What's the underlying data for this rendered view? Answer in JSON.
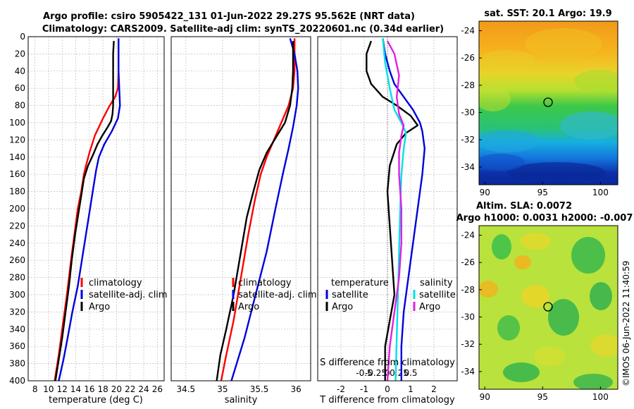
{
  "title_line1": "Argo profile: csiro 5905422_131 01-Jun-2022 29.27S 95.562E (NRT data)",
  "title_line2": "Climatology: CARS2009. Satellite-adj clim: synTS_20220601.nc (0.34d earlier)",
  "watermark": "©IMOS 06-Jun-2022 11:40:59",
  "colors": {
    "red": "#ff0000",
    "blue": "#0000dd",
    "black": "#000000",
    "cyan": "#00e0e8",
    "magenta": "#e020e0"
  },
  "chart_data": [
    {
      "type": "line",
      "name": "temperature",
      "xlabel": "temperature (deg C)",
      "ylabel": "",
      "xlim": [
        7,
        27
      ],
      "ylim": [
        400,
        0
      ],
      "xticks": [
        8,
        10,
        12,
        14,
        16,
        18,
        20,
        22,
        24,
        26
      ],
      "yticks": [
        0,
        20,
        40,
        60,
        80,
        100,
        120,
        140,
        160,
        180,
        200,
        220,
        240,
        260,
        280,
        300,
        320,
        340,
        360,
        380,
        400
      ],
      "legend": [
        "climatology",
        "satellite-adj. clim",
        "Argo"
      ],
      "series": [
        {
          "name": "climatology",
          "color": "red",
          "points": [
            [
              20.3,
              2
            ],
            [
              20.3,
              20
            ],
            [
              20.3,
              40
            ],
            [
              20.2,
              60
            ],
            [
              19.8,
              70
            ],
            [
              19.0,
              80
            ],
            [
              18.0,
              95
            ],
            [
              16.8,
              115
            ],
            [
              16.0,
              135
            ],
            [
              15.5,
              150
            ],
            [
              15.2,
              160
            ],
            [
              14.8,
              180
            ],
            [
              14.3,
              200
            ],
            [
              13.8,
              230
            ],
            [
              13.3,
              260
            ],
            [
              12.7,
              300
            ],
            [
              12.0,
              340
            ],
            [
              11.5,
              370
            ],
            [
              10.9,
              400
            ]
          ]
        },
        {
          "name": "satellite-adj. clim",
          "color": "blue",
          "points": [
            [
              20.3,
              2
            ],
            [
              20.3,
              40
            ],
            [
              20.4,
              60
            ],
            [
              20.5,
              80
            ],
            [
              20.2,
              95
            ],
            [
              19.3,
              110
            ],
            [
              18.2,
              125
            ],
            [
              17.4,
              140
            ],
            [
              17.0,
              155
            ],
            [
              16.6,
              175
            ],
            [
              16.1,
              200
            ],
            [
              15.5,
              230
            ],
            [
              14.9,
              260
            ],
            [
              14.3,
              290
            ],
            [
              13.5,
              320
            ],
            [
              12.8,
              350
            ],
            [
              12.2,
              375
            ],
            [
              11.5,
              400
            ]
          ]
        },
        {
          "name": "Argo",
          "color": "black",
          "points": [
            [
              19.6,
              5
            ],
            [
              19.5,
              20
            ],
            [
              19.5,
              40
            ],
            [
              19.5,
              60
            ],
            [
              19.5,
              80
            ],
            [
              19.4,
              90
            ],
            [
              19.2,
              98
            ],
            [
              18.7,
              105
            ],
            [
              17.9,
              115
            ],
            [
              17.2,
              125
            ],
            [
              16.5,
              138
            ],
            [
              15.8,
              150
            ],
            [
              15.2,
              165
            ],
            [
              14.8,
              185
            ],
            [
              14.4,
              205
            ],
            [
              13.9,
              230
            ],
            [
              13.4,
              260
            ],
            [
              13.0,
              290
            ],
            [
              12.5,
              320
            ],
            [
              12.0,
              350
            ],
            [
              11.4,
              380
            ],
            [
              11.0,
              400
            ]
          ]
        }
      ]
    },
    {
      "type": "line",
      "name": "salinity",
      "xlabel": "salinity",
      "xlim": [
        34.3,
        36.2
      ],
      "ylim": [
        400,
        0
      ],
      "xticks": [
        34.5,
        35,
        35.5,
        36
      ],
      "xtick_labels": [
        "34.5",
        "35",
        "35.5",
        "36"
      ],
      "legend": [
        "climatology",
        "satellite-adj. clim",
        "Argo"
      ],
      "series": [
        {
          "name": "climatology",
          "color": "red",
          "points": [
            [
              35.98,
              2
            ],
            [
              35.98,
              40
            ],
            [
              35.96,
              60
            ],
            [
              35.9,
              80
            ],
            [
              35.8,
              100
            ],
            [
              35.7,
              120
            ],
            [
              35.6,
              140
            ],
            [
              35.52,
              160
            ],
            [
              35.44,
              190
            ],
            [
              35.35,
              230
            ],
            [
              35.25,
              280
            ],
            [
              35.15,
              330
            ],
            [
              35.05,
              370
            ],
            [
              34.98,
              400
            ]
          ]
        },
        {
          "name": "satellite-adj. clim",
          "color": "blue",
          "points": [
            [
              35.92,
              2
            ],
            [
              35.98,
              20
            ],
            [
              36.02,
              40
            ],
            [
              36.03,
              60
            ],
            [
              36.01,
              80
            ],
            [
              35.96,
              105
            ],
            [
              35.9,
              130
            ],
            [
              35.82,
              160
            ],
            [
              35.72,
              200
            ],
            [
              35.6,
              250
            ],
            [
              35.45,
              300
            ],
            [
              35.3,
              350
            ],
            [
              35.12,
              400
            ]
          ]
        },
        {
          "name": "Argo",
          "color": "black",
          "points": [
            [
              35.96,
              5
            ],
            [
              35.96,
              40
            ],
            [
              35.95,
              60
            ],
            [
              35.92,
              80
            ],
            [
              35.85,
              100
            ],
            [
              35.72,
              118
            ],
            [
              35.6,
              135
            ],
            [
              35.5,
              155
            ],
            [
              35.42,
              180
            ],
            [
              35.33,
              210
            ],
            [
              35.25,
              250
            ],
            [
              35.15,
              300
            ],
            [
              35.05,
              340
            ],
            [
              34.97,
              370
            ],
            [
              34.92,
              400
            ]
          ]
        }
      ]
    },
    {
      "type": "line",
      "name": "difference",
      "xlabel": "T difference from climatology",
      "xlabel_top": "S difference from climatology",
      "xlim": [
        -3,
        3
      ],
      "ylim": [
        400,
        0
      ],
      "xticks": [
        -2,
        -1,
        0,
        1,
        2
      ],
      "xtick_labels": [
        "-2",
        "-1",
        "0",
        "1",
        "2"
      ],
      "s_xtick_labels": [
        "-0.5",
        "-0.25",
        "0",
        "0.25",
        "0.5"
      ],
      "legend_temperature_title": "temperature",
      "legend_salinity_title": "salinity",
      "legend_temperature": [
        "satellite",
        "Argo"
      ],
      "legend_salinity": [
        "satellite",
        "Argo"
      ],
      "series": [
        {
          "name": "T satellite",
          "color": "blue",
          "points": [
            [
              -0.2,
              2
            ],
            [
              -0.1,
              20
            ],
            [
              0.1,
              40
            ],
            [
              0.3,
              55
            ],
            [
              0.7,
              70
            ],
            [
              1.1,
              85
            ],
            [
              1.4,
              100
            ],
            [
              1.5,
              110
            ],
            [
              1.6,
              130
            ],
            [
              1.5,
              160
            ],
            [
              1.3,
              200
            ],
            [
              1.1,
              240
            ],
            [
              0.9,
              280
            ],
            [
              0.7,
              320
            ],
            [
              0.6,
              360
            ],
            [
              0.6,
              400
            ]
          ]
        },
        {
          "name": "T Argo",
          "color": "black",
          "points": [
            [
              -0.7,
              5
            ],
            [
              -0.9,
              20
            ],
            [
              -0.9,
              40
            ],
            [
              -0.7,
              55
            ],
            [
              -0.2,
              70
            ],
            [
              0.4,
              80
            ],
            [
              1.0,
              92
            ],
            [
              1.3,
              103
            ],
            [
              0.8,
              112
            ],
            [
              0.4,
              125
            ],
            [
              0.1,
              150
            ],
            [
              0.0,
              180
            ],
            [
              0.1,
              220
            ],
            [
              0.2,
              260
            ],
            [
              0.3,
              300
            ],
            [
              0.1,
              330
            ],
            [
              -0.1,
              360
            ],
            [
              -0.1,
              400
            ]
          ]
        },
        {
          "name": "S satellite",
          "color": "cyan",
          "points": [
            [
              -0.2,
              2
            ],
            [
              -0.1,
              30
            ],
            [
              0.1,
              60
            ],
            [
              0.3,
              85
            ],
            [
              0.6,
              100
            ],
            [
              0.8,
              112
            ],
            [
              0.7,
              130
            ],
            [
              0.6,
              160
            ],
            [
              0.55,
              200
            ],
            [
              0.5,
              250
            ],
            [
              0.45,
              300
            ],
            [
              0.4,
              350
            ],
            [
              0.35,
              400
            ]
          ]
        },
        {
          "name": "S Argo",
          "color": "magenta",
          "points": [
            [
              0.0,
              5
            ],
            [
              0.3,
              20
            ],
            [
              0.5,
              45
            ],
            [
              0.4,
              70
            ],
            [
              0.5,
              90
            ],
            [
              0.7,
              103
            ],
            [
              0.6,
              115
            ],
            [
              0.5,
              135
            ],
            [
              0.5,
              160
            ],
            [
              0.6,
              200
            ],
            [
              0.6,
              240
            ],
            [
              0.5,
              280
            ],
            [
              0.3,
              320
            ],
            [
              0.1,
              360
            ],
            [
              0.0,
              400
            ]
          ]
        }
      ]
    }
  ],
  "maps": [
    {
      "name": "sst",
      "title": "sat. SST: 20.1 Argo: 19.9",
      "xticks": [
        "90",
        "95",
        "100"
      ],
      "yticks": [
        "-24",
        "-26",
        "-28",
        "-30",
        "-32",
        "-34"
      ]
    },
    {
      "name": "sla",
      "title1": "Altim. SLA: 0.0072",
      "title2": "Argo h1000: 0.0031 h2000: -0.007",
      "xticks": [
        "90",
        "95",
        "100"
      ],
      "yticks": [
        "-24",
        "-26",
        "-28",
        "-30",
        "-32",
        "-34"
      ]
    }
  ]
}
